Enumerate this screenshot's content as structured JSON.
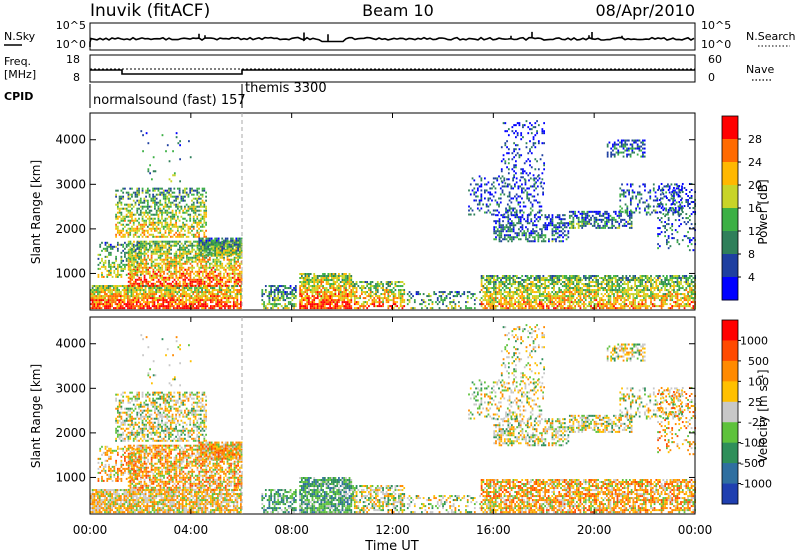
{
  "header": {
    "station": "Inuvik  (fitACF)",
    "beam": "Beam 10",
    "date": "08/Apr/2010"
  },
  "panel_nsky": {
    "left_label": "N.Sky",
    "left_ticks": [
      "10^5",
      "10^0"
    ],
    "right_label": "N.Search",
    "right_ticks": [
      "10^5",
      "10^0"
    ]
  },
  "panel_freq": {
    "left_label_1": "Freq.",
    "left_label_2": "[MHz]",
    "left_ticks": [
      "18",
      "8"
    ],
    "right_label": "Nave",
    "right_ticks": [
      "60",
      "0"
    ]
  },
  "panel_cpid": {
    "label": "CPID",
    "modes": [
      "normalsound (fast) 157",
      "themis 3300"
    ]
  },
  "x_axis": {
    "title": "Time UT",
    "ticks": [
      "00:00",
      "04:00",
      "08:00",
      "12:00",
      "16:00",
      "20:00",
      "00:00"
    ]
  },
  "colorbars": {
    "power": {
      "label": "Power [dB]",
      "ticks": [
        "28",
        "24",
        "20",
        "16",
        "12",
        "8",
        "4"
      ],
      "colors": [
        "#0000ff",
        "#1e3fa0",
        "#2f7f5a",
        "#3cb044",
        "#c8d428",
        "#ffb800",
        "#ff6a00",
        "#ff0000"
      ]
    },
    "velocity": {
      "label": "Velocity [m s⁻¹]",
      "ticks": [
        "1000",
        "500",
        "100",
        "25",
        "-25",
        "-100",
        "-500",
        "-1000"
      ],
      "colors": [
        "#1f3fb0",
        "#2f6fa0",
        "#2e8f5a",
        "#5ec23c",
        "#c8c8c8",
        "#ffc000",
        "#ff8a00",
        "#ff4a00",
        "#ff0000"
      ]
    }
  },
  "chart_data": [
    {
      "type": "heatmap",
      "title": "Power",
      "xlabel": "Time UT",
      "ylabel": "Slant Range [km]",
      "xlim": [
        0,
        24
      ],
      "ylim": [
        180,
        4600
      ],
      "y_ticks": [
        1000,
        2000,
        3000,
        4000
      ],
      "colorbar": "Power [dB]",
      "description_regions": [
        {
          "t": [
            0,
            6
          ],
          "range": [
            200,
            1700
          ],
          "level": "high"
        },
        {
          "t": [
            1,
            4.5
          ],
          "range": [
            1800,
            2900
          ],
          "level": "mid"
        },
        {
          "t": [
            6.5,
            24
          ],
          "range": [
            200,
            900
          ],
          "level": "high"
        },
        {
          "t": [
            15.5,
            24
          ],
          "range": [
            1500,
            4400
          ],
          "level": "low"
        }
      ]
    },
    {
      "type": "heatmap",
      "title": "Velocity",
      "xlabel": "Time UT",
      "ylabel": "Slant Range [km]",
      "xlim": [
        0,
        24
      ],
      "ylim": [
        180,
        4600
      ],
      "y_ticks": [
        1000,
        2000,
        3000,
        4000
      ],
      "colorbar": "Velocity [m s⁻¹]"
    }
  ]
}
